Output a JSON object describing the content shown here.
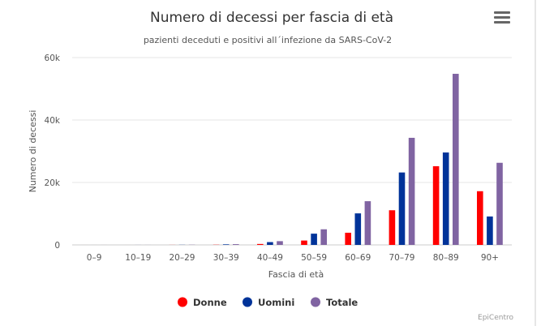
{
  "chart_data": {
    "type": "bar",
    "title": "Numero di decessi per fascia di età",
    "subtitle": "pazienti deceduti e positivi all´infezione da SARS-CoV-2",
    "xlabel": "Fascia di età",
    "ylabel": "Numero di decessi",
    "categories": [
      "0–9",
      "10–19",
      "20–29",
      "30–39",
      "40–49",
      "50–59",
      "60–69",
      "70–79",
      "80–89",
      "90+"
    ],
    "ylim": [
      0,
      60000
    ],
    "yticks": [
      0,
      20000,
      40000,
      60000
    ],
    "ytick_labels": [
      "0",
      "20k",
      "40k",
      "60k"
    ],
    "grid": true,
    "legend_position": "bottom",
    "series": [
      {
        "name": "Donne",
        "color": "#ff0000",
        "values": [
          2,
          3,
          20,
          60,
          300,
          1400,
          3900,
          11100,
          25200,
          17200
        ]
      },
      {
        "name": "Uomini",
        "color": "#003399",
        "values": [
          3,
          8,
          40,
          180,
          900,
          3600,
          10100,
          23200,
          29600,
          9100
        ]
      },
      {
        "name": "Totale",
        "color": "#8064a2",
        "values": [
          5,
          11,
          60,
          240,
          1200,
          5000,
          14000,
          34300,
          54800,
          26300
        ]
      }
    ],
    "credits": "EpiCentro"
  }
}
